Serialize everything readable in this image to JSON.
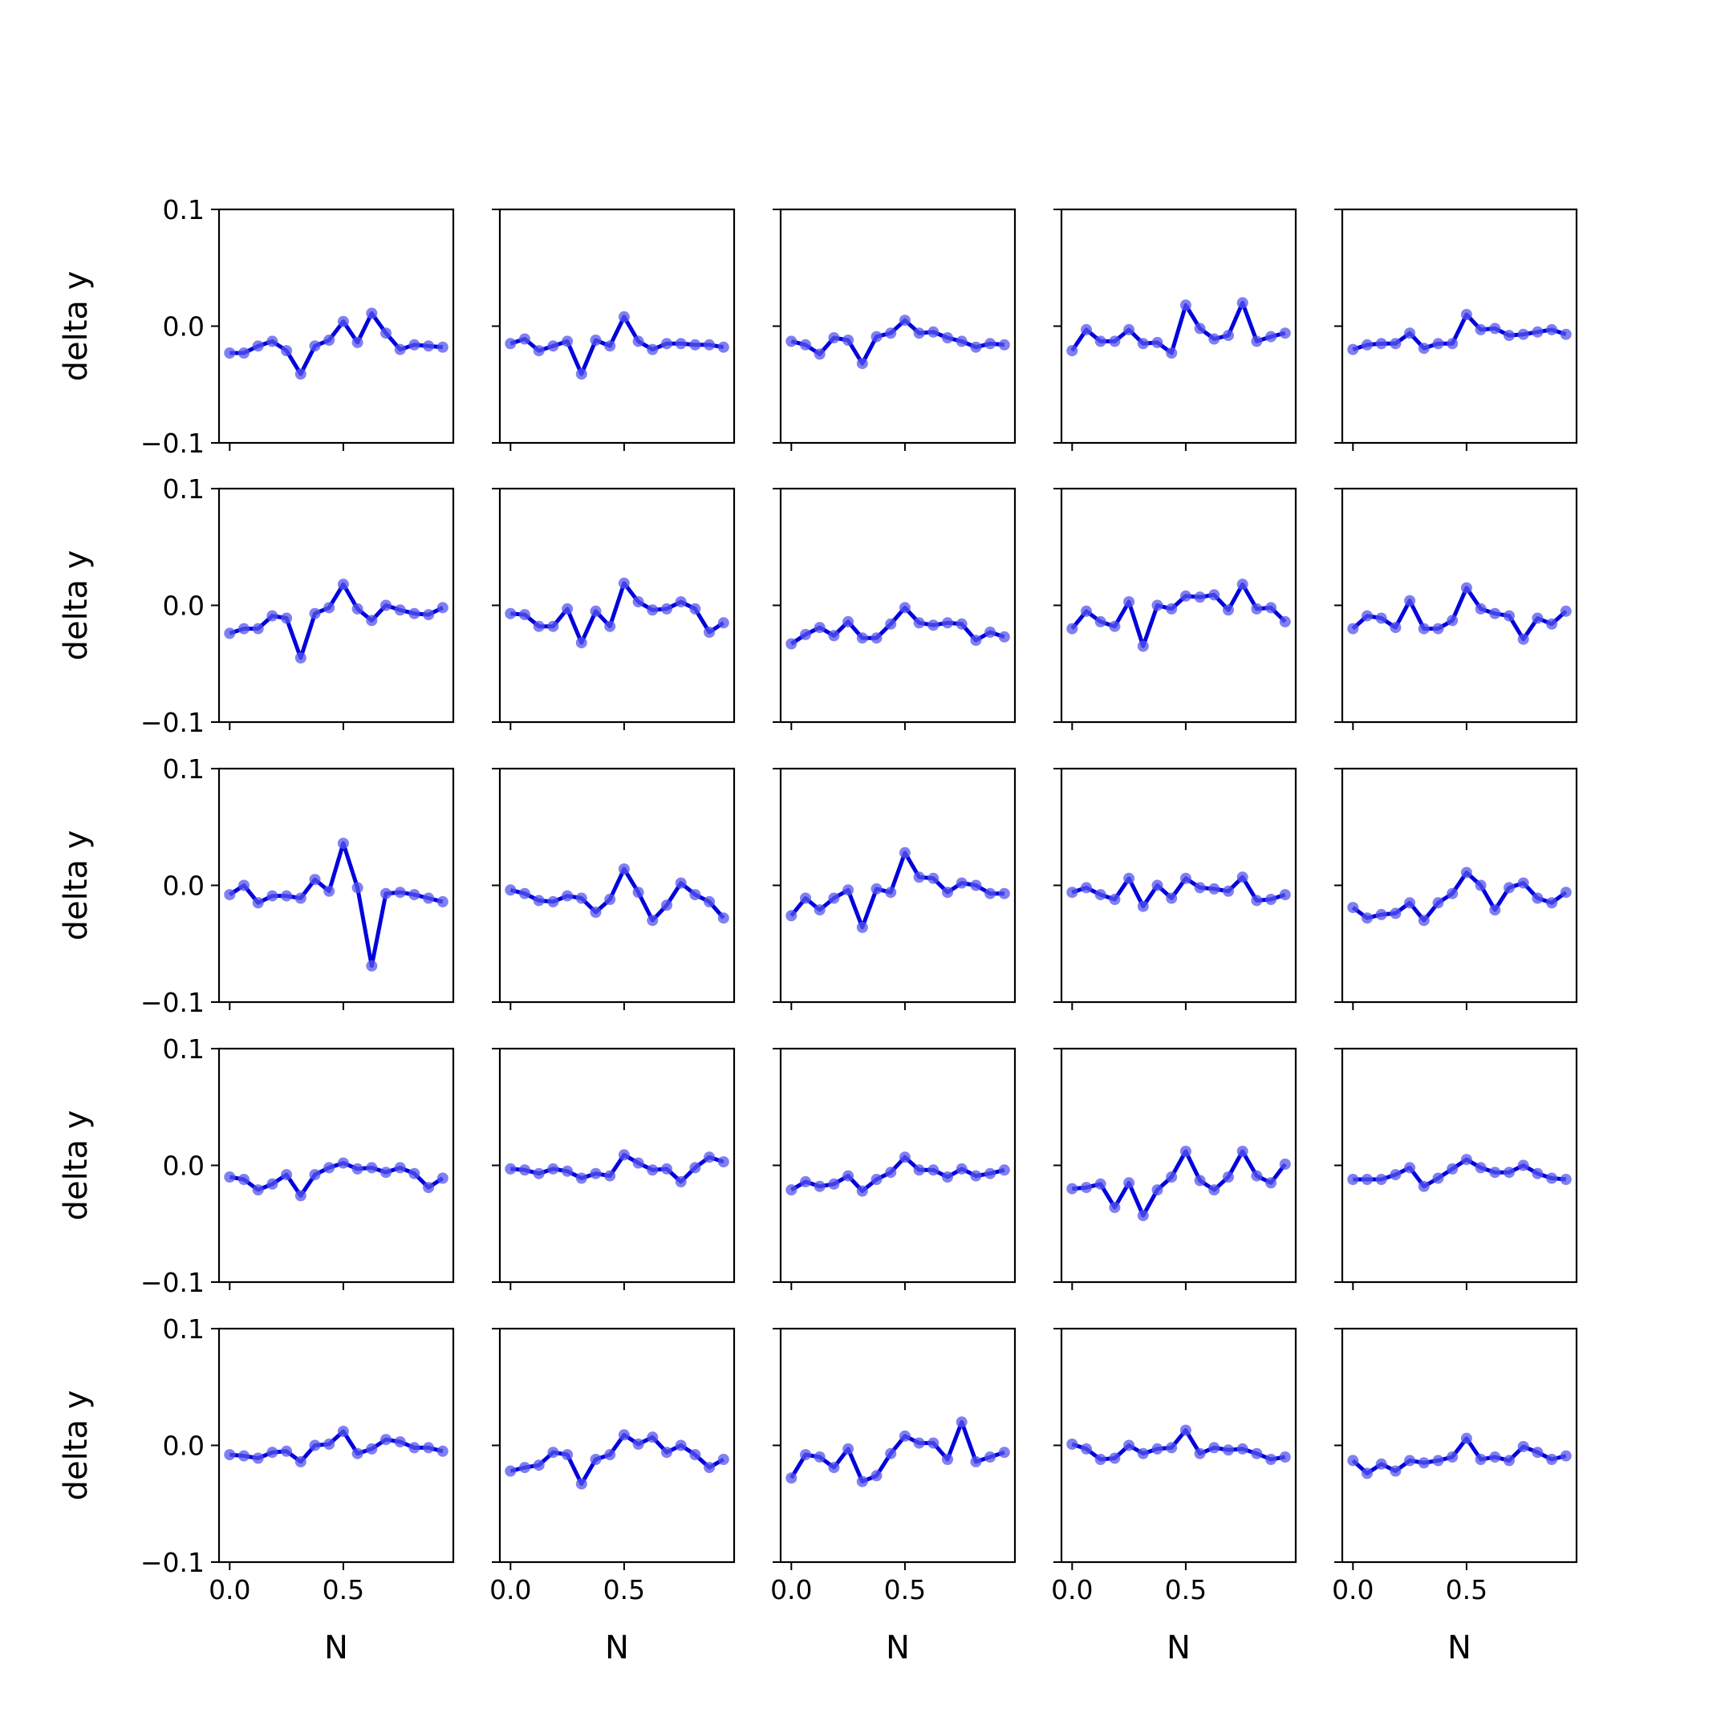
{
  "chart_data": {
    "type": "line",
    "layout": {
      "rows": 5,
      "cols": 5,
      "sharex": true,
      "sharey": true
    },
    "x": [
      0.0,
      0.0625,
      0.125,
      0.1875,
      0.25,
      0.3125,
      0.375,
      0.4375,
      0.5,
      0.5625,
      0.625,
      0.6875,
      0.75,
      0.8125,
      0.875,
      0.9375
    ],
    "xlim": [
      -0.047,
      0.984
    ],
    "ylim": [
      -0.1,
      0.1
    ],
    "xticks": [
      0.0,
      0.5
    ],
    "xtick_labels": [
      "0.0",
      "0.5"
    ],
    "yticks": [
      -0.1,
      0.0,
      0.1
    ],
    "ytick_labels": [
      "−0.1",
      "0.0",
      "0.1"
    ],
    "xlabel": "N",
    "ylabel": "delta y",
    "line_color": "#0000dd",
    "marker_color": "#5555ee",
    "grid": false,
    "panels": [
      [
        -0.023,
        -0.023,
        -0.017,
        -0.013,
        -0.021,
        -0.041,
        -0.017,
        -0.012,
        0.004,
        -0.014,
        0.011,
        -0.006,
        -0.02,
        -0.016,
        -0.017,
        -0.018
      ],
      [
        -0.015,
        -0.011,
        -0.021,
        -0.017,
        -0.013,
        -0.041,
        -0.012,
        -0.017,
        0.008,
        -0.013,
        -0.02,
        -0.015,
        -0.015,
        -0.016,
        -0.016,
        -0.018
      ],
      [
        -0.013,
        -0.016,
        -0.024,
        -0.01,
        -0.012,
        -0.032,
        -0.009,
        -0.006,
        0.005,
        -0.006,
        -0.005,
        -0.01,
        -0.013,
        -0.018,
        -0.015,
        -0.016
      ],
      [
        -0.021,
        -0.003,
        -0.013,
        -0.013,
        -0.003,
        -0.015,
        -0.014,
        -0.023,
        0.018,
        -0.002,
        -0.011,
        -0.008,
        0.02,
        -0.013,
        -0.009,
        -0.006
      ],
      [
        -0.02,
        -0.016,
        -0.015,
        -0.015,
        -0.006,
        -0.019,
        -0.015,
        -0.015,
        0.01,
        -0.003,
        -0.002,
        -0.008,
        -0.007,
        -0.005,
        -0.003,
        -0.007
      ],
      [
        -0.024,
        -0.02,
        -0.02,
        -0.009,
        -0.011,
        -0.045,
        -0.007,
        -0.002,
        0.018,
        -0.003,
        -0.013,
        0.0,
        -0.004,
        -0.007,
        -0.008,
        -0.002
      ],
      [
        -0.007,
        -0.008,
        -0.018,
        -0.018,
        -0.003,
        -0.032,
        -0.005,
        -0.018,
        0.019,
        0.003,
        -0.004,
        -0.003,
        0.003,
        -0.003,
        -0.023,
        -0.015
      ],
      [
        -0.033,
        -0.025,
        -0.019,
        -0.026,
        -0.014,
        -0.028,
        -0.028,
        -0.016,
        -0.002,
        -0.015,
        -0.017,
        -0.015,
        -0.016,
        -0.03,
        -0.023,
        -0.027
      ],
      [
        -0.02,
        -0.005,
        -0.014,
        -0.018,
        0.003,
        -0.035,
        0.0,
        -0.003,
        0.008,
        0.007,
        0.009,
        -0.004,
        0.018,
        -0.003,
        -0.002,
        -0.014
      ],
      [
        -0.02,
        -0.009,
        -0.011,
        -0.019,
        0.004,
        -0.02,
        -0.02,
        -0.013,
        0.015,
        -0.003,
        -0.007,
        -0.009,
        -0.029,
        -0.011,
        -0.016,
        -0.005
      ],
      [
        -0.008,
        0.0,
        -0.015,
        -0.009,
        -0.009,
        -0.011,
        0.005,
        -0.005,
        0.036,
        -0.002,
        -0.069,
        -0.007,
        -0.006,
        -0.008,
        -0.011,
        -0.014
      ],
      [
        -0.004,
        -0.007,
        -0.013,
        -0.014,
        -0.009,
        -0.011,
        -0.023,
        -0.012,
        0.014,
        -0.006,
        -0.03,
        -0.017,
        0.002,
        -0.008,
        -0.014,
        -0.028
      ],
      [
        -0.026,
        -0.011,
        -0.021,
        -0.011,
        -0.004,
        -0.036,
        -0.003,
        -0.006,
        0.028,
        0.007,
        0.006,
        -0.006,
        0.002,
        0.0,
        -0.007,
        -0.007
      ],
      [
        -0.006,
        -0.002,
        -0.008,
        -0.012,
        0.006,
        -0.018,
        0.0,
        -0.011,
        0.006,
        -0.002,
        -0.003,
        -0.005,
        0.007,
        -0.013,
        -0.012,
        -0.008
      ],
      [
        -0.019,
        -0.028,
        -0.025,
        -0.024,
        -0.015,
        -0.03,
        -0.015,
        -0.007,
        0.011,
        0.0,
        -0.021,
        -0.002,
        0.002,
        -0.011,
        -0.015,
        -0.006
      ],
      [
        -0.01,
        -0.012,
        -0.021,
        -0.016,
        -0.008,
        -0.026,
        -0.008,
        -0.002,
        0.002,
        -0.003,
        -0.002,
        -0.006,
        -0.002,
        -0.007,
        -0.019,
        -0.011
      ],
      [
        -0.003,
        -0.004,
        -0.007,
        -0.003,
        -0.005,
        -0.011,
        -0.007,
        -0.009,
        0.009,
        0.002,
        -0.004,
        -0.003,
        -0.014,
        -0.002,
        0.007,
        0.003
      ],
      [
        -0.021,
        -0.014,
        -0.018,
        -0.016,
        -0.009,
        -0.022,
        -0.012,
        -0.006,
        0.007,
        -0.004,
        -0.004,
        -0.01,
        -0.003,
        -0.009,
        -0.007,
        -0.004
      ],
      [
        -0.02,
        -0.019,
        -0.016,
        -0.036,
        -0.015,
        -0.043,
        -0.021,
        -0.01,
        0.012,
        -0.013,
        -0.021,
        -0.01,
        0.012,
        -0.009,
        -0.015,
        0.001
      ],
      [
        -0.012,
        -0.012,
        -0.012,
        -0.008,
        -0.002,
        -0.018,
        -0.011,
        -0.003,
        0.005,
        -0.002,
        -0.006,
        -0.006,
        0.0,
        -0.007,
        -0.011,
        -0.012
      ],
      [
        -0.008,
        -0.009,
        -0.011,
        -0.006,
        -0.005,
        -0.014,
        0.0,
        0.001,
        0.012,
        -0.007,
        -0.003,
        0.005,
        0.003,
        -0.002,
        -0.002,
        -0.005
      ],
      [
        -0.022,
        -0.019,
        -0.017,
        -0.006,
        -0.008,
        -0.033,
        -0.012,
        -0.008,
        0.009,
        0.001,
        0.007,
        -0.006,
        0.0,
        -0.008,
        -0.019,
        -0.012
      ],
      [
        -0.028,
        -0.008,
        -0.01,
        -0.019,
        -0.003,
        -0.031,
        -0.026,
        -0.007,
        0.008,
        0.002,
        0.002,
        -0.012,
        0.02,
        -0.014,
        -0.01,
        -0.006
      ],
      [
        0.001,
        -0.003,
        -0.012,
        -0.011,
        0.0,
        -0.007,
        -0.003,
        -0.002,
        0.013,
        -0.007,
        -0.002,
        -0.004,
        -0.003,
        -0.007,
        -0.012,
        -0.01
      ],
      [
        -0.013,
        -0.024,
        -0.016,
        -0.022,
        -0.013,
        -0.015,
        -0.013,
        -0.01,
        0.006,
        -0.012,
        -0.01,
        -0.013,
        -0.001,
        -0.006,
        -0.012,
        -0.009
      ]
    ]
  }
}
